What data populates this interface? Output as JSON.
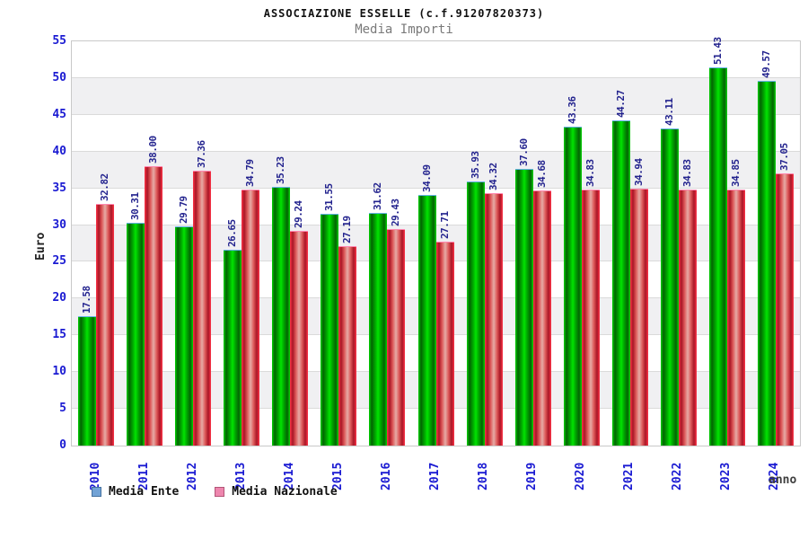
{
  "header": {
    "title": "ASSOCIAZIONE ESSELLE (c.f.91207820373)",
    "subtitle": "Media Importi"
  },
  "chart_data": {
    "type": "bar",
    "title": "ASSOCIAZIONE ESSELLE (c.f.91207820373)",
    "subtitle": "Media Importi",
    "xlabel": "anno",
    "ylabel": "Euro",
    "ylim": [
      0,
      55
    ],
    "ytick_step": 5,
    "grid": "horizontal-bands-alternating",
    "legend_position": "bottom-left",
    "value_label_format": "2-decimals-rotated-90",
    "categories": [
      "2010",
      "2011",
      "2012",
      "2013",
      "2014",
      "2015",
      "2016",
      "2017",
      "2018",
      "2019",
      "2020",
      "2021",
      "2022",
      "2023",
      "2024"
    ],
    "series": [
      {
        "name": "Media Ente",
        "color": "#00c800",
        "swatch_fill": "#72a3d6",
        "swatch_border": "#44719f",
        "values": [
          17.58,
          30.31,
          29.79,
          26.65,
          35.23,
          31.55,
          31.62,
          34.09,
          35.93,
          37.6,
          43.36,
          44.27,
          43.11,
          51.43,
          49.57
        ]
      },
      {
        "name": "Media Nazionale",
        "color": "#dd2233",
        "swatch_fill": "#ee86ae",
        "swatch_border": "#b25577",
        "values": [
          32.82,
          38.0,
          37.36,
          34.79,
          29.24,
          27.19,
          29.43,
          27.71,
          34.32,
          34.68,
          34.83,
          34.94,
          34.83,
          34.85,
          37.05
        ]
      }
    ]
  },
  "colors": {
    "tick_label": "#1a1ad2",
    "value_label": "#23238e",
    "band_gray": "#f0f0f2",
    "gridline": "#dadada",
    "plot_border": "#c9c9c9",
    "title_text": "#111111",
    "subtitle_text": "#7a7a7a",
    "anno_text": "#3f3f3f"
  }
}
